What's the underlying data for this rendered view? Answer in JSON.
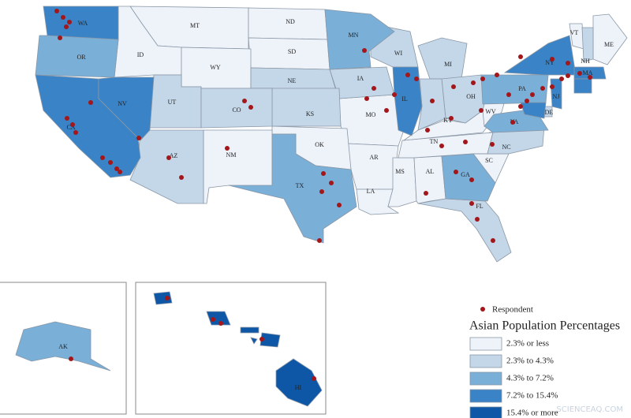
{
  "map": {
    "legend": {
      "marker_label": "Respondent",
      "title": "Asian Population Percentages",
      "classes": [
        {
          "label": "2.3% or less",
          "color": "#eef3fa",
          "states": [
            "MT",
            "ND",
            "ID",
            "SD",
            "WY",
            "MO",
            "AR",
            "LA",
            "MS",
            "AL",
            "TN",
            "KY",
            "WV",
            "SC",
            "OK",
            "NM",
            "ME",
            "VT"
          ]
        },
        {
          "label": "2.3% to 4.3%",
          "color": "#c3d7e8",
          "states": [
            "WI",
            "MI",
            "IA",
            "NE",
            "KS",
            "UT",
            "AZ",
            "CO",
            "OH",
            "NC",
            "FL",
            "NH",
            "DE"
          ]
        },
        {
          "label": "4.3% to 7.2%",
          "color": "#7aafd8",
          "states": [
            "OR",
            "MN",
            "TX",
            "GA",
            "PA",
            "VA",
            "AK"
          ]
        },
        {
          "label": "7.2% to 15.4%",
          "color": "#3a83c6",
          "states": [
            "WA",
            "CA",
            "NV",
            "IL",
            "NY",
            "MA",
            "NJ"
          ]
        },
        {
          "label": "15.4% or more",
          "color": "#0d57a6",
          "states": [
            "HI"
          ]
        }
      ]
    },
    "watermark": "SCIENCEAQ.COM"
  }
}
